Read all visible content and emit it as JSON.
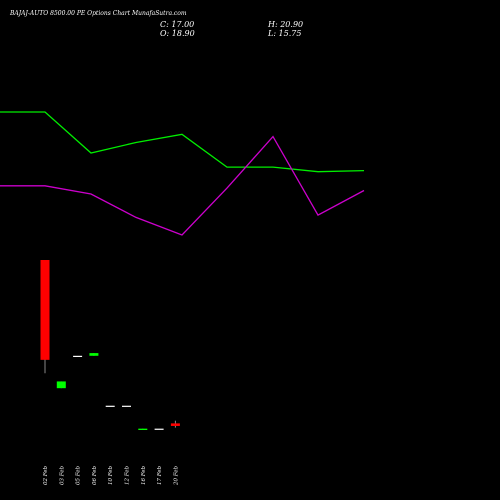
{
  "header": {
    "title": "BAJAJ-AUTO 8500.00 PE Options Chart MunafaSutra.com",
    "close_label": "C: 17.00",
    "high_label": "H: 20.90",
    "open_label": "O: 18.90",
    "low_label": "L: 15.75"
  },
  "colors": {
    "background": "#000000",
    "up": "#00ff00",
    "down": "#ff0000",
    "neutral": "#ffffff",
    "line_green": "#00ee00",
    "line_magenta": "#cc00cc"
  },
  "chart_data": {
    "type": "candlestick",
    "categories": [
      "02 Feb",
      "03 Feb",
      "05 Feb",
      "06 Feb",
      "10 Feb",
      "12 Feb",
      "16 Feb",
      "17 Feb",
      "20 Feb"
    ],
    "candles": [
      {
        "date": "02 Feb",
        "open": 140,
        "high": 140,
        "low": 62,
        "close": 66,
        "direction": "down"
      },
      {
        "date": "03 Feb",
        "open": 50,
        "high": 50,
        "low": 45,
        "close": 45,
        "direction": "up"
      },
      {
        "date": "05 Feb",
        "open": 69,
        "high": 69,
        "low": 69,
        "close": 69,
        "direction": "flat"
      },
      {
        "date": "06 Feb",
        "open": 69,
        "high": 71,
        "low": 69,
        "close": 71,
        "direction": "up"
      },
      {
        "date": "10 Feb",
        "open": 32,
        "high": 32,
        "low": 32,
        "close": 32,
        "direction": "flat"
      },
      {
        "date": "12 Feb",
        "open": 32,
        "high": 32,
        "low": 32,
        "close": 32,
        "direction": "flat"
      },
      {
        "date": "16 Feb",
        "open": 14,
        "high": 15,
        "low": 14,
        "close": 15,
        "direction": "up"
      },
      {
        "date": "17 Feb",
        "open": 15,
        "high": 15,
        "low": 15,
        "close": 15,
        "direction": "flat"
      },
      {
        "date": "20 Feb",
        "open": 18.9,
        "high": 20.9,
        "low": 15.75,
        "close": 17,
        "direction": "down"
      }
    ],
    "series": [
      {
        "color": "green",
        "values": [
          355,
          355,
          320,
          329,
          336,
          308,
          308,
          304,
          305
        ]
      },
      {
        "color": "magenta",
        "values": [
          292,
          292,
          285,
          265,
          250,
          290,
          334,
          267,
          288
        ]
      }
    ]
  }
}
